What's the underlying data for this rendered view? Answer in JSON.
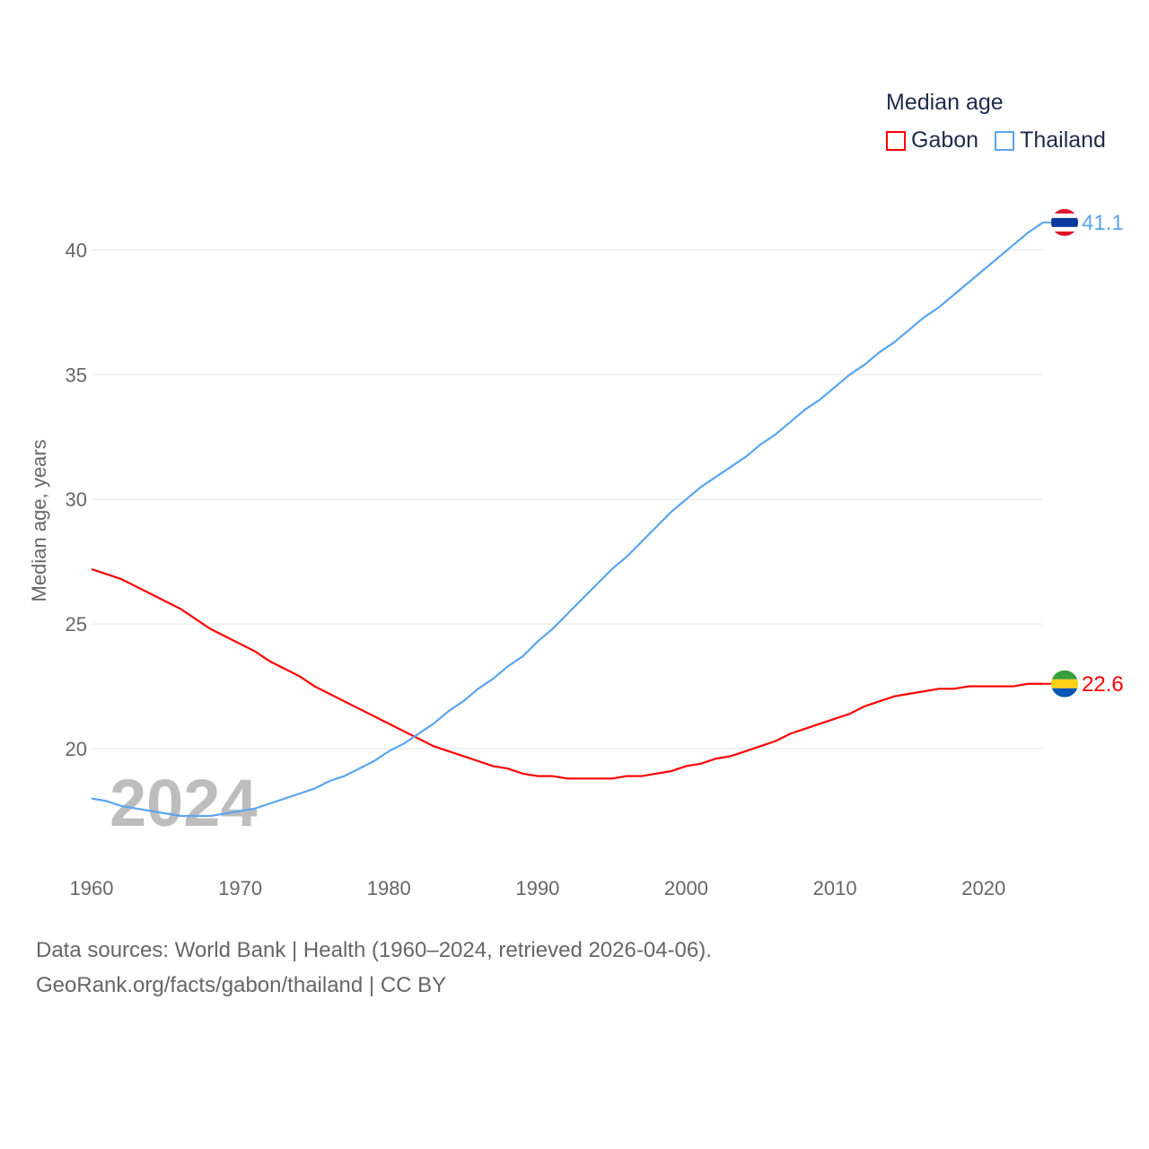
{
  "chart_data": {
    "type": "line",
    "title": "Median age",
    "ylabel": "Median age, years",
    "xlabel": "",
    "xlim": [
      1960,
      2024
    ],
    "ylim": [
      15.5,
      43
    ],
    "x_ticks": [
      1960,
      1970,
      1980,
      1990,
      2000,
      2010,
      2020
    ],
    "y_ticks": [
      20,
      25,
      30,
      35,
      40
    ],
    "grid": true,
    "legend_placement": "top-right",
    "year_watermark": "2024",
    "x": [
      1960,
      1961,
      1962,
      1963,
      1964,
      1965,
      1966,
      1967,
      1968,
      1969,
      1970,
      1971,
      1972,
      1973,
      1974,
      1975,
      1976,
      1977,
      1978,
      1979,
      1980,
      1981,
      1982,
      1983,
      1984,
      1985,
      1986,
      1987,
      1988,
      1989,
      1990,
      1991,
      1992,
      1993,
      1994,
      1995,
      1996,
      1997,
      1998,
      1999,
      2000,
      2001,
      2002,
      2003,
      2004,
      2005,
      2006,
      2007,
      2008,
      2009,
      2010,
      2011,
      2012,
      2013,
      2014,
      2015,
      2016,
      2017,
      2018,
      2019,
      2020,
      2021,
      2022,
      2023,
      2024
    ],
    "series": [
      {
        "name": "Gabon",
        "color": "#ff0000",
        "end_label": "22.6",
        "values": [
          27.2,
          27.0,
          26.8,
          26.5,
          26.2,
          25.9,
          25.6,
          25.2,
          24.8,
          24.5,
          24.2,
          23.9,
          23.5,
          23.2,
          22.9,
          22.5,
          22.2,
          21.9,
          21.6,
          21.3,
          21.0,
          20.7,
          20.4,
          20.1,
          19.9,
          19.7,
          19.5,
          19.3,
          19.2,
          19.0,
          18.9,
          18.9,
          18.8,
          18.8,
          18.8,
          18.8,
          18.9,
          18.9,
          19.0,
          19.1,
          19.3,
          19.4,
          19.6,
          19.7,
          19.9,
          20.1,
          20.3,
          20.6,
          20.8,
          21.0,
          21.2,
          21.4,
          21.7,
          21.9,
          22.1,
          22.2,
          22.3,
          22.4,
          22.4,
          22.5,
          22.5,
          22.5,
          22.5,
          22.6,
          22.6
        ]
      },
      {
        "name": "Thailand",
        "color": "#5ba4ef",
        "end_label": "41.1",
        "values": [
          18.0,
          17.9,
          17.7,
          17.6,
          17.5,
          17.4,
          17.3,
          17.3,
          17.3,
          17.4,
          17.5,
          17.6,
          17.8,
          18.0,
          18.2,
          18.4,
          18.7,
          18.9,
          19.2,
          19.5,
          19.9,
          20.2,
          20.6,
          21.0,
          21.5,
          21.9,
          22.4,
          22.8,
          23.3,
          23.7,
          24.3,
          24.8,
          25.4,
          26.0,
          26.6,
          27.2,
          27.7,
          28.3,
          28.9,
          29.5,
          30.0,
          30.5,
          30.9,
          31.3,
          31.7,
          32.2,
          32.6,
          33.1,
          33.6,
          34.0,
          34.5,
          35.0,
          35.4,
          35.9,
          36.3,
          36.8,
          37.3,
          37.7,
          38.2,
          38.7,
          39.2,
          39.7,
          40.2,
          40.7,
          41.1
        ]
      }
    ]
  },
  "footer": {
    "line1": "Data sources: World Bank | Health (1960–2024, retrieved 2026-04-06).",
    "line2": "GeoRank.org/facts/gabon/thailand | CC BY"
  }
}
